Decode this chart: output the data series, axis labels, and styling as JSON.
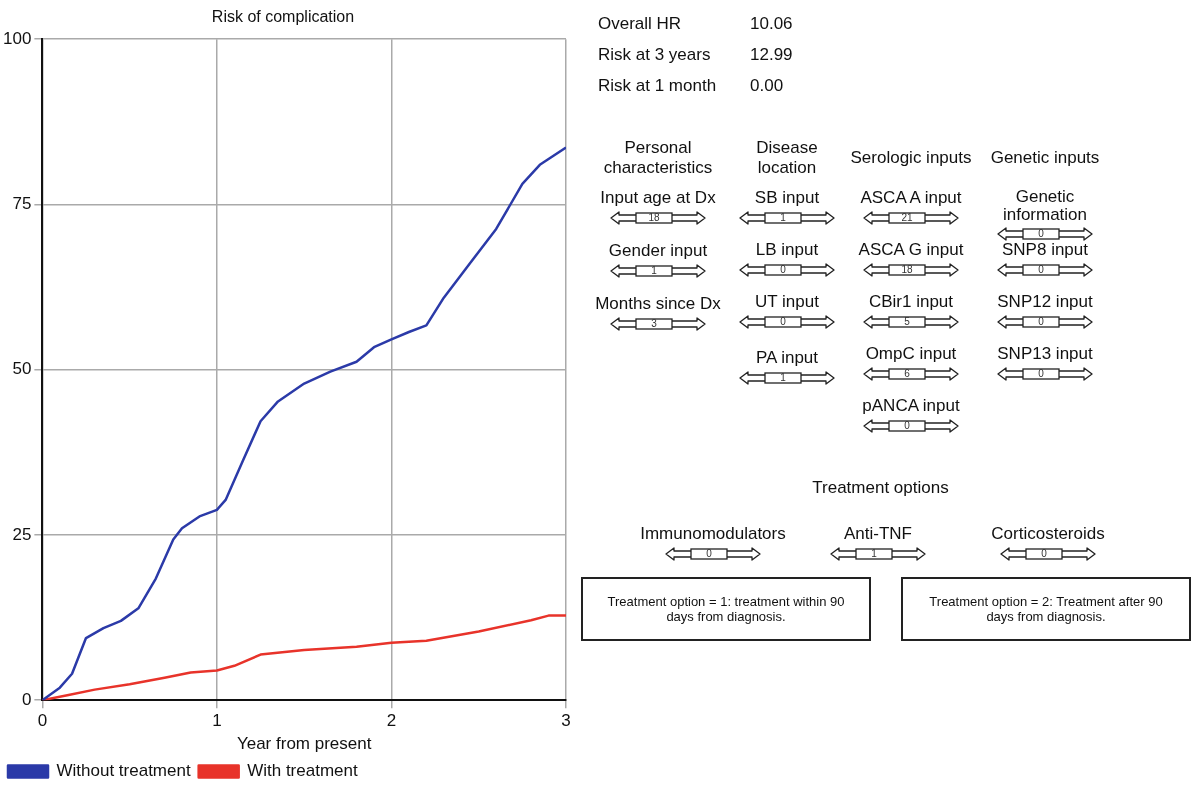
{
  "chart_data": [
    {
      "type": "line",
      "title": "Risk of complication",
      "xlabel": "Year from present",
      "xlim": [
        0,
        3
      ],
      "xticks": [
        0,
        1,
        2,
        3
      ],
      "ylim": [
        0,
        100
      ],
      "yticks": [
        0,
        25,
        50,
        75,
        100
      ],
      "grid": true,
      "legend": "bottom",
      "marker": "none",
      "line_style": "solid",
      "series": [
        {
          "name": "Without treatment",
          "color": "#2b3aa8",
          "x": [
            0,
            0.1,
            0.17,
            0.25,
            0.35,
            0.45,
            0.55,
            0.65,
            0.75,
            0.8,
            0.9,
            1.0,
            1.05,
            1.15,
            1.25,
            1.35,
            1.5,
            1.65,
            1.8,
            1.9,
            2.0,
            2.1,
            2.2,
            2.3,
            2.45,
            2.6,
            2.75,
            2.85,
            3.0
          ],
          "values": [
            0,
            1.9,
            4,
            9.4,
            10.9,
            12,
            13.9,
            18.4,
            24.3,
            26,
            27.8,
            28.8,
            30.3,
            36.3,
            42.2,
            45.2,
            47.9,
            49.7,
            51.2,
            53.4,
            54.6,
            55.7,
            56.7,
            60.9,
            66.1,
            71.3,
            78.1,
            81,
            83.6
          ]
        },
        {
          "name": "With treatment",
          "color": "#e8332a",
          "x": [
            0,
            0.15,
            0.3,
            0.5,
            0.7,
            0.85,
            1.0,
            1.1,
            1.25,
            1.5,
            1.8,
            2.0,
            2.2,
            2.5,
            2.8,
            2.9,
            3.0
          ],
          "values": [
            0,
            0.8,
            1.6,
            2.4,
            3.4,
            4.2,
            4.5,
            5.2,
            6.9,
            7.6,
            8.1,
            8.7,
            9,
            10.4,
            12.1,
            12.8,
            12.8
          ]
        }
      ]
    },
    {
      "type": "other",
      "annotations": [
        "Overall HR",
        "10.06",
        "Risk at 3 years",
        "12.99",
        "Risk at 1 month",
        "0.00",
        "Personal characteristics",
        "Disease location",
        "Serologic inputs",
        "Genetic inputs",
        "Input age at Dx",
        "18",
        "Gender input",
        "1",
        "Months since Dx",
        "3",
        "SB input",
        "1",
        "LB input",
        "0",
        "UT input",
        "0",
        "PA input",
        "1",
        "ASCA A input",
        "21",
        "ASCA G input",
        "18",
        "CBir1 input",
        "5",
        "OmpC input",
        "6",
        "pANCA input",
        "0",
        "Genetic information",
        "0",
        "SNP8 input",
        "0",
        "SNP12 input",
        "0",
        "SNP13 input",
        "0",
        "Treatment options",
        "Immunomodulators",
        "0",
        "Anti-TNF",
        "1",
        "Corticosteroids",
        "0",
        "Treatment option = 1: treatment within 90 days from diagnosis.",
        "Treatment option = 2: Treatment after 90 days from diagnosis."
      ]
    }
  ]
}
